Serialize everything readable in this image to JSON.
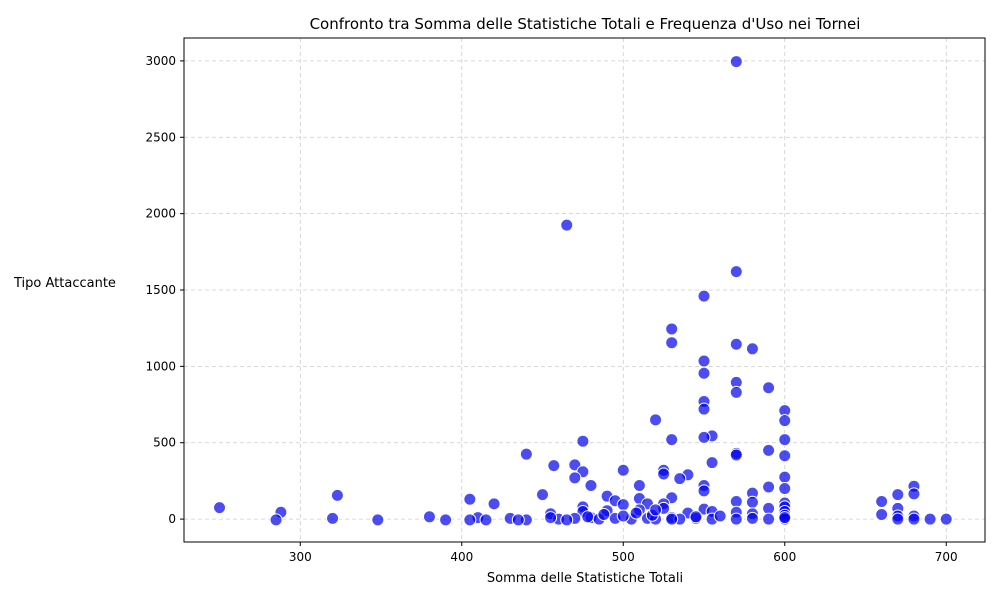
{
  "chart_data": {
    "type": "scatter",
    "title": "Confronto tra Somma delle Statistiche Totali e Frequenza d'Uso nei Tornei",
    "xlabel": "Somma delle Statistiche Totali",
    "ylabel": "Tipo Attaccante",
    "xlim": [
      228,
      724
    ],
    "ylim": [
      -150,
      3150
    ],
    "xticks": [
      300,
      400,
      500,
      600,
      700
    ],
    "yticks": [
      0,
      500,
      1000,
      1500,
      2000,
      2500,
      3000
    ],
    "grid": true,
    "marker_color": "#0000ee",
    "points": [
      [
        570,
        2995
      ],
      [
        465,
        1925
      ],
      [
        570,
        1620
      ],
      [
        550,
        1460
      ],
      [
        530,
        1245
      ],
      [
        530,
        1155
      ],
      [
        570,
        1145
      ],
      [
        580,
        1115
      ],
      [
        550,
        1035
      ],
      [
        550,
        955
      ],
      [
        570,
        895
      ],
      [
        590,
        860
      ],
      [
        570,
        830
      ],
      [
        550,
        770
      ],
      [
        550,
        720
      ],
      [
        600,
        710
      ],
      [
        520,
        650
      ],
      [
        600,
        645
      ],
      [
        555,
        545
      ],
      [
        550,
        535
      ],
      [
        530,
        520
      ],
      [
        600,
        520
      ],
      [
        475,
        510
      ],
      [
        570,
        430
      ],
      [
        570,
        420
      ],
      [
        440,
        425
      ],
      [
        590,
        450
      ],
      [
        600,
        415
      ],
      [
        555,
        370
      ],
      [
        470,
        355
      ],
      [
        457,
        350
      ],
      [
        500,
        320
      ],
      [
        525,
        320
      ],
      [
        475,
        310
      ],
      [
        525,
        295
      ],
      [
        540,
        290
      ],
      [
        535,
        265
      ],
      [
        470,
        270
      ],
      [
        600,
        275
      ],
      [
        480,
        220
      ],
      [
        510,
        220
      ],
      [
        550,
        220
      ],
      [
        590,
        210
      ],
      [
        680,
        215
      ],
      [
        600,
        200
      ],
      [
        550,
        185
      ],
      [
        580,
        170
      ],
      [
        670,
        160
      ],
      [
        680,
        165
      ],
      [
        323,
        155
      ],
      [
        450,
        160
      ],
      [
        490,
        150
      ],
      [
        530,
        140
      ],
      [
        510,
        135
      ],
      [
        405,
        130
      ],
      [
        495,
        120
      ],
      [
        660,
        115
      ],
      [
        570,
        115
      ],
      [
        580,
        110
      ],
      [
        600,
        105
      ],
      [
        420,
        100
      ],
      [
        500,
        95
      ],
      [
        515,
        100
      ],
      [
        525,
        100
      ],
      [
        600,
        80
      ],
      [
        250,
        75
      ],
      [
        475,
        80
      ],
      [
        550,
        65
      ],
      [
        590,
        70
      ],
      [
        670,
        70
      ],
      [
        525,
        70
      ],
      [
        510,
        60
      ],
      [
        555,
        50
      ],
      [
        600,
        50
      ],
      [
        570,
        45
      ],
      [
        288,
        45
      ],
      [
        475,
        50
      ],
      [
        490,
        55
      ],
      [
        540,
        40
      ],
      [
        660,
        30
      ],
      [
        455,
        35
      ],
      [
        580,
        35
      ],
      [
        600,
        25
      ],
      [
        670,
        20
      ],
      [
        680,
        20
      ],
      [
        380,
        15
      ],
      [
        410,
        10
      ],
      [
        430,
        5
      ],
      [
        320,
        5
      ],
      [
        285,
        -5
      ],
      [
        348,
        -5
      ],
      [
        390,
        -5
      ],
      [
        405,
        -5
      ],
      [
        415,
        -5
      ],
      [
        440,
        -5
      ],
      [
        460,
        0
      ],
      [
        470,
        5
      ],
      [
        480,
        10
      ],
      [
        485,
        0
      ],
      [
        495,
        5
      ],
      [
        505,
        0
      ],
      [
        515,
        5
      ],
      [
        520,
        0
      ],
      [
        530,
        10
      ],
      [
        535,
        0
      ],
      [
        545,
        5
      ],
      [
        555,
        0
      ],
      [
        570,
        0
      ],
      [
        580,
        5
      ],
      [
        590,
        0
      ],
      [
        600,
        0
      ],
      [
        670,
        0
      ],
      [
        680,
        0
      ],
      [
        690,
        0
      ],
      [
        700,
        0
      ],
      [
        455,
        10
      ],
      [
        478,
        15
      ],
      [
        500,
        20
      ],
      [
        518,
        25
      ],
      [
        545,
        15
      ],
      [
        488,
        30
      ],
      [
        508,
        40
      ],
      [
        520,
        60
      ],
      [
        560,
        20
      ],
      [
        600,
        10
      ],
      [
        435,
        -5
      ],
      [
        465,
        -5
      ],
      [
        530,
        0
      ]
    ]
  }
}
